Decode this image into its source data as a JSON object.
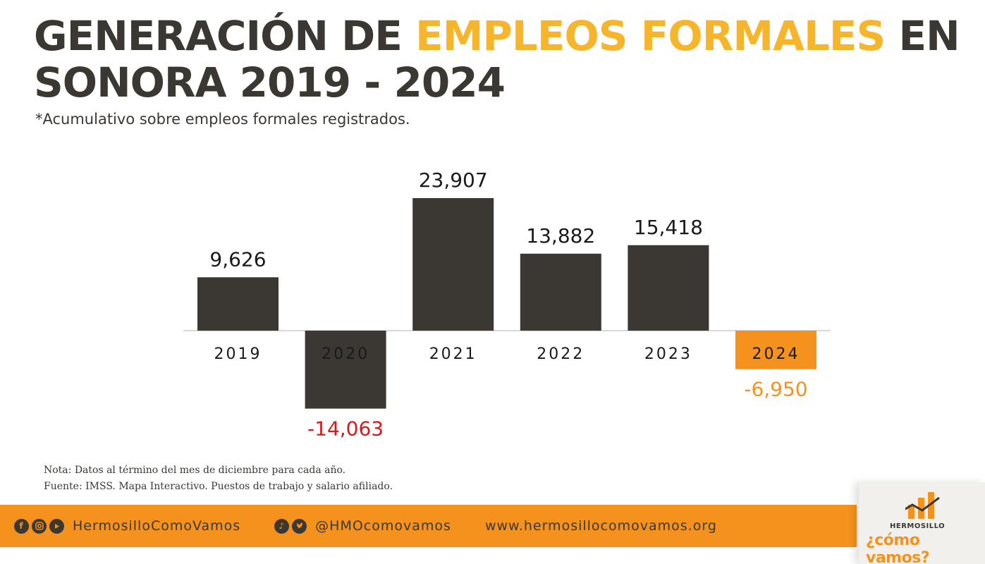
{
  "title": {
    "part1": "GENERACIÓN DE ",
    "highlight": "EMPLEOS FORMALES",
    "part2": " EN SONORA 2019 - 2024"
  },
  "subtitle": "*Acumulativo sobre empleos formales registrados.",
  "chart_data": {
    "type": "bar",
    "categories": [
      "2019",
      "2020",
      "2021",
      "2022",
      "2023",
      "2024"
    ],
    "values": [
      9626,
      -14063,
      23907,
      13882,
      15418,
      -6950
    ],
    "data_labels": [
      "9,626",
      "-14,063",
      "23,907",
      "13,882",
      "15,418",
      "-6,950"
    ],
    "title": "GENERACIÓN DE EMPLEOS FORMALES EN SONORA 2019 - 2024",
    "xlabel": "",
    "ylabel": "",
    "ylim": [
      -16000,
      26000
    ],
    "grid": false,
    "legend": "none",
    "colors": {
      "bar": "#3b3733",
      "highlight_bar": "#f5921e",
      "label_positive": "#1a1a1a",
      "label_negative": "#d61a1a",
      "label_highlight": "#f5921e",
      "axis": "#cccccc"
    }
  },
  "notes": {
    "nota": "Nota: Datos al término del mes de diciembre para cada año.",
    "fuente": "Fuente: IMSS. Mapa Interactivo. Puestos de trabajo y salario afiliado."
  },
  "footer": {
    "facebook_handle": "HermosilloComoVamos",
    "twitter_handle": "@HMOcomovamos",
    "website": "www.hermosillocomovamos.org",
    "icons": [
      "facebook-icon",
      "instagram-icon",
      "youtube-icon",
      "tiktok-icon",
      "twitter-icon"
    ]
  },
  "logo": {
    "small": "HERMOSILLO",
    "big": "¿cómo vamos?"
  }
}
